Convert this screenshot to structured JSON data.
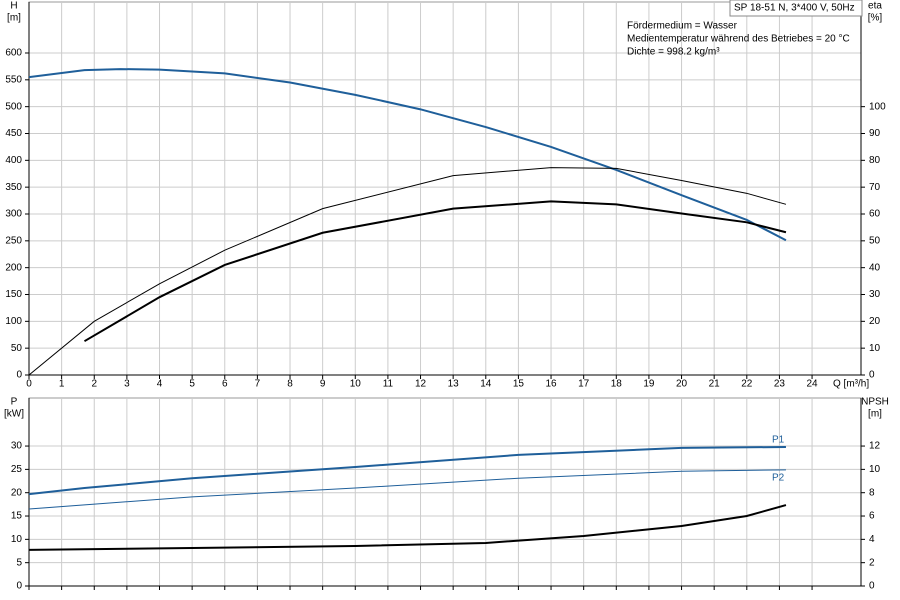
{
  "chart_data": [
    {
      "type": "line",
      "title": "SP 18-51 N, 3*400 V, 50Hz",
      "annotations": [
        "Fördermedium = Wasser",
        "Medientemperatur während des Betriebes = 20 °C",
        "Dichte = 998.2 kg/m³"
      ],
      "ylabel": "H",
      "yunit": "[m]",
      "y2label": "eta",
      "y2unit": "[%]",
      "xlabel": "Q [m³/h]",
      "xlim": [
        0,
        25.5
      ],
      "xticks": [
        0,
        1,
        2,
        3,
        4,
        5,
        6,
        7,
        8,
        9,
        10,
        11,
        12,
        13,
        14,
        15,
        16,
        17,
        18,
        19,
        20,
        21,
        22,
        23,
        24
      ],
      "ylim": [
        0,
        695
      ],
      "yticks": [
        0,
        50,
        100,
        150,
        200,
        250,
        300,
        350,
        400,
        450,
        500,
        550,
        600
      ],
      "y2lim": [
        0,
        139
      ],
      "y2ticks": [
        0,
        10,
        20,
        30,
        40,
        50,
        60,
        70,
        80,
        90,
        100
      ],
      "grid": true,
      "series": [
        {
          "color": "#1f5f9a",
          "line_width": 2,
          "x": [
            0,
            1.7,
            2.8,
            4,
            6,
            8,
            10,
            12,
            14,
            16,
            18,
            20,
            22,
            23.2
          ],
          "values": [
            555,
            568,
            570,
            569,
            562,
            545,
            522,
            495,
            462,
            425,
            382,
            335,
            289,
            251
          ]
        },
        {
          "color": "#000000",
          "line_width": 1,
          "axis": "y2",
          "x": [
            0,
            2,
            4,
            6,
            9,
            13,
            16,
            18,
            20,
            22,
            23.2
          ],
          "values": [
            0,
            20,
            34,
            46.5,
            62,
            74.3,
            77.3,
            77,
            72.5,
            67.7,
            63.6
          ]
        },
        {
          "color": "#000000",
          "line_width": 2,
          "axis": "y2",
          "x": [
            1.7,
            4,
            6,
            9,
            13,
            16,
            18,
            20,
            22,
            23.2
          ],
          "values": [
            12.6,
            29,
            41,
            53,
            62,
            64.7,
            63.6,
            60.2,
            56.9,
            53.2
          ]
        }
      ]
    },
    {
      "type": "line",
      "ylabel": "P",
      "yunit": "[kW]",
      "y2label": "NPSH",
      "y2unit": "[m]",
      "xlim": [
        0,
        25.5
      ],
      "xticks": [
        0,
        1,
        2,
        3,
        4,
        5,
        6,
        7,
        8,
        9,
        10,
        11,
        12,
        13,
        14,
        15,
        16,
        17,
        18,
        19,
        20,
        21,
        22,
        23,
        24
      ],
      "ylim": [
        0,
        40.3
      ],
      "yticks": [
        0,
        5,
        10,
        15,
        20,
        25,
        30
      ],
      "y2lim": [
        0,
        16.12
      ],
      "y2ticks": [
        0,
        2,
        4,
        6,
        8,
        10,
        12
      ],
      "grid": true,
      "series": [
        {
          "name": "P1",
          "color": "#1f5f9a",
          "line_width": 2,
          "x": [
            0,
            1.7,
            5,
            10,
            15,
            20,
            23.2
          ],
          "values": [
            19.7,
            21,
            23.1,
            25.5,
            28.1,
            29.6,
            29.8
          ]
        },
        {
          "name": "P2",
          "color": "#1f5f9a",
          "line_width": 1,
          "x": [
            0,
            5,
            10,
            15,
            20,
            23.2
          ],
          "values": [
            16.5,
            19.1,
            21,
            23.1,
            24.6,
            24.9
          ]
        },
        {
          "color": "#000000",
          "line_width": 2,
          "axis": "y2",
          "x": [
            0,
            5,
            10,
            14,
            17,
            20,
            22,
            23.2
          ],
          "values": [
            3.1,
            3.26,
            3.43,
            3.69,
            4.29,
            5.14,
            6.0,
            6.94
          ]
        }
      ]
    }
  ]
}
